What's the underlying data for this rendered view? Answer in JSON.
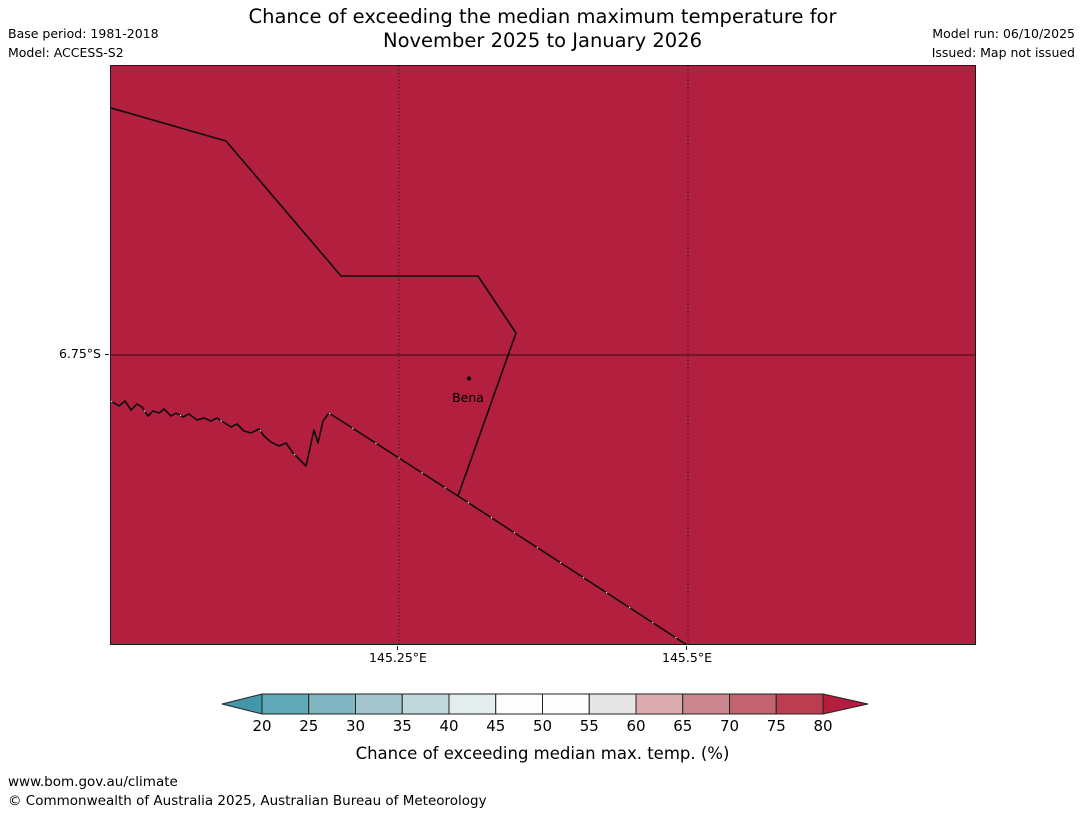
{
  "header": {
    "base_period": "Base period: 1981-2018",
    "model": "Model: ACCESS-S2",
    "model_run": "Model run: 06/10/2025",
    "issued": "Issued: Map not issued"
  },
  "title": {
    "line1": "Chance of exceeding the median maximum temperature for",
    "line2": "November 2025 to January 2026"
  },
  "map": {
    "lat_label": "6.75°S",
    "lon_labels": [
      "145.25°E",
      "145.5°E"
    ],
    "place": {
      "label": "Bena"
    }
  },
  "colorbar": {
    "ticks": [
      "20",
      "25",
      "30",
      "35",
      "40",
      "45",
      "50",
      "55",
      "60",
      "65",
      "70",
      "75",
      "80"
    ],
    "segment_colors": [
      "#5fa8b5",
      "#7fb6c1",
      "#a2c6cb",
      "#c2d7d9",
      "#e3edee",
      "#fdfdfd",
      "#fdfdfd",
      "#e7e6e6",
      "#dcacb3",
      "#cd8791",
      "#c36370",
      "#bc3d51"
    ],
    "arrow_left_color": "#4297a8",
    "arrow_right_color": "#b51c3e",
    "label": "Chance of exceeding median max. temp. (%)"
  },
  "footer": {
    "url": "www.bom.gov.au/climate",
    "copyright": "© Commonwealth of Australia 2025, Australian Bureau of Meteorology"
  },
  "colors": {
    "map_fill": "#b31f3f",
    "line": "#0d0d0d"
  }
}
